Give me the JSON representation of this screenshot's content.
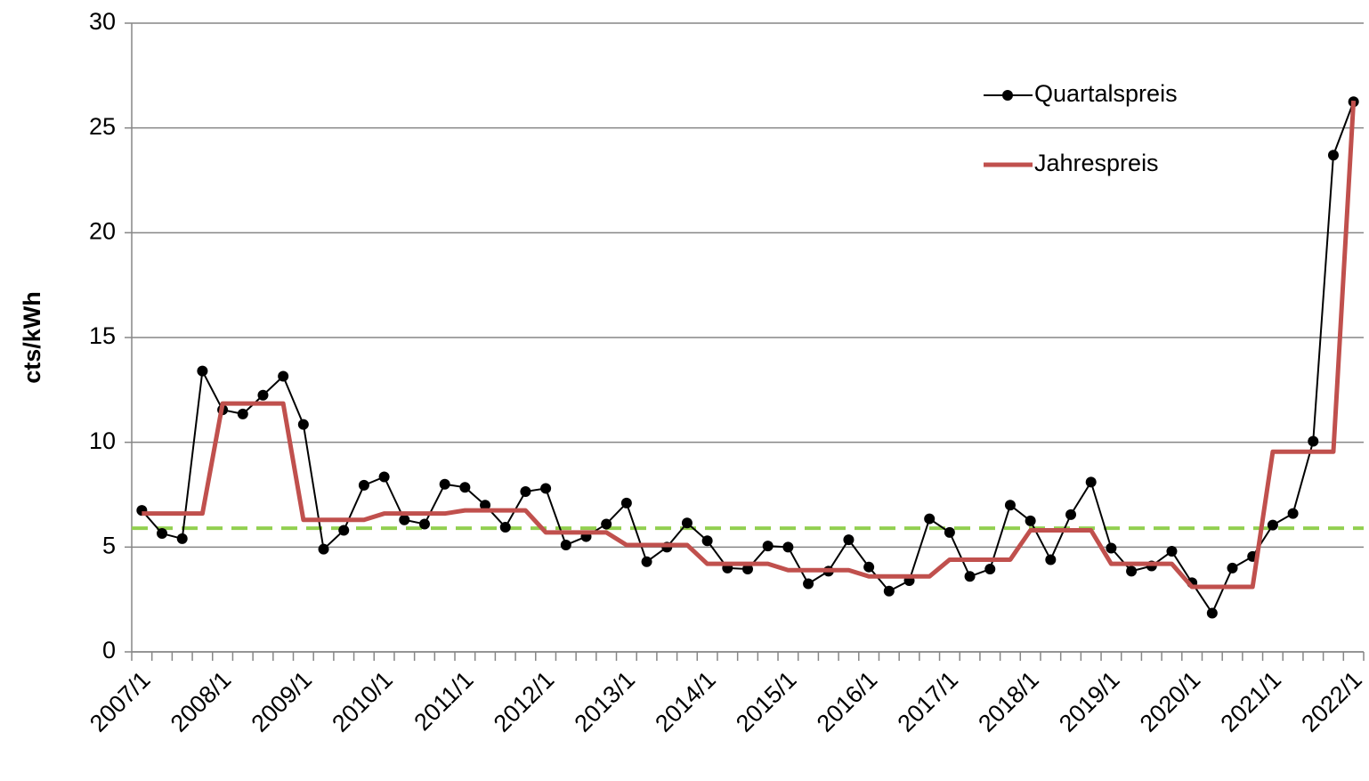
{
  "chart_data": {
    "type": "line",
    "ylabel": "cts/kWh",
    "categories": [
      "2007/1",
      null,
      null,
      null,
      "2008/1",
      null,
      null,
      null,
      "2009/1",
      null,
      null,
      null,
      "2010/1",
      null,
      null,
      null,
      "2011/1",
      null,
      null,
      null,
      "2012/1",
      null,
      null,
      null,
      "2013/1",
      null,
      null,
      null,
      "2014/1",
      null,
      null,
      null,
      "2015/1",
      null,
      null,
      null,
      "2016/1",
      null,
      null,
      null,
      "2017/1",
      null,
      null,
      null,
      "2018/1",
      null,
      null,
      null,
      "2019/1",
      null,
      null,
      null,
      "2020/1",
      null,
      null,
      null,
      "2021/1",
      null,
      null,
      null,
      "2022/1"
    ],
    "series": [
      {
        "name": "Quartalspreis",
        "color": "#000000",
        "markers": true,
        "values": [
          6.75,
          5.65,
          5.4,
          13.4,
          11.55,
          11.35,
          12.25,
          13.15,
          10.85,
          4.9,
          5.8,
          7.95,
          8.35,
          6.3,
          6.1,
          8.0,
          7.85,
          7.0,
          5.95,
          7.65,
          7.8,
          5.1,
          5.5,
          6.1,
          7.1,
          4.3,
          5.0,
          6.15,
          5.3,
          4.0,
          3.95,
          5.05,
          5.0,
          3.25,
          3.85,
          5.35,
          4.05,
          2.9,
          3.4,
          6.35,
          5.7,
          3.6,
          3.95,
          7.0,
          6.25,
          4.4,
          6.55,
          8.1,
          4.95,
          3.85,
          4.1,
          4.8,
          3.3,
          1.85,
          4.0,
          4.55,
          6.05,
          6.6,
          10.05,
          23.7,
          26.25
        ]
      },
      {
        "name": "Jahrespreis",
        "color": "#c0504d",
        "markers": false,
        "values": [
          6.6,
          6.6,
          6.6,
          6.6,
          11.85,
          11.85,
          11.85,
          11.85,
          6.3,
          6.3,
          6.3,
          6.3,
          6.6,
          6.6,
          6.6,
          6.6,
          6.75,
          6.75,
          6.75,
          6.75,
          5.7,
          5.7,
          5.7,
          5.7,
          5.1,
          5.1,
          5.1,
          5.1,
          4.2,
          4.2,
          4.2,
          4.2,
          3.9,
          3.9,
          3.9,
          3.9,
          3.6,
          3.6,
          3.6,
          3.6,
          4.4,
          4.4,
          4.4,
          4.4,
          5.8,
          5.8,
          5.8,
          5.8,
          4.2,
          4.2,
          4.2,
          4.2,
          3.1,
          3.1,
          3.1,
          3.1,
          9.55,
          9.55,
          9.55,
          9.55,
          26.3
        ]
      }
    ],
    "reference_line": {
      "value": 5.9,
      "color": "#92d050"
    },
    "ylim": [
      0,
      30
    ],
    "yticks": [
      0,
      5,
      10,
      15,
      20,
      25,
      30
    ],
    "grid": true,
    "legend": "upper right"
  }
}
